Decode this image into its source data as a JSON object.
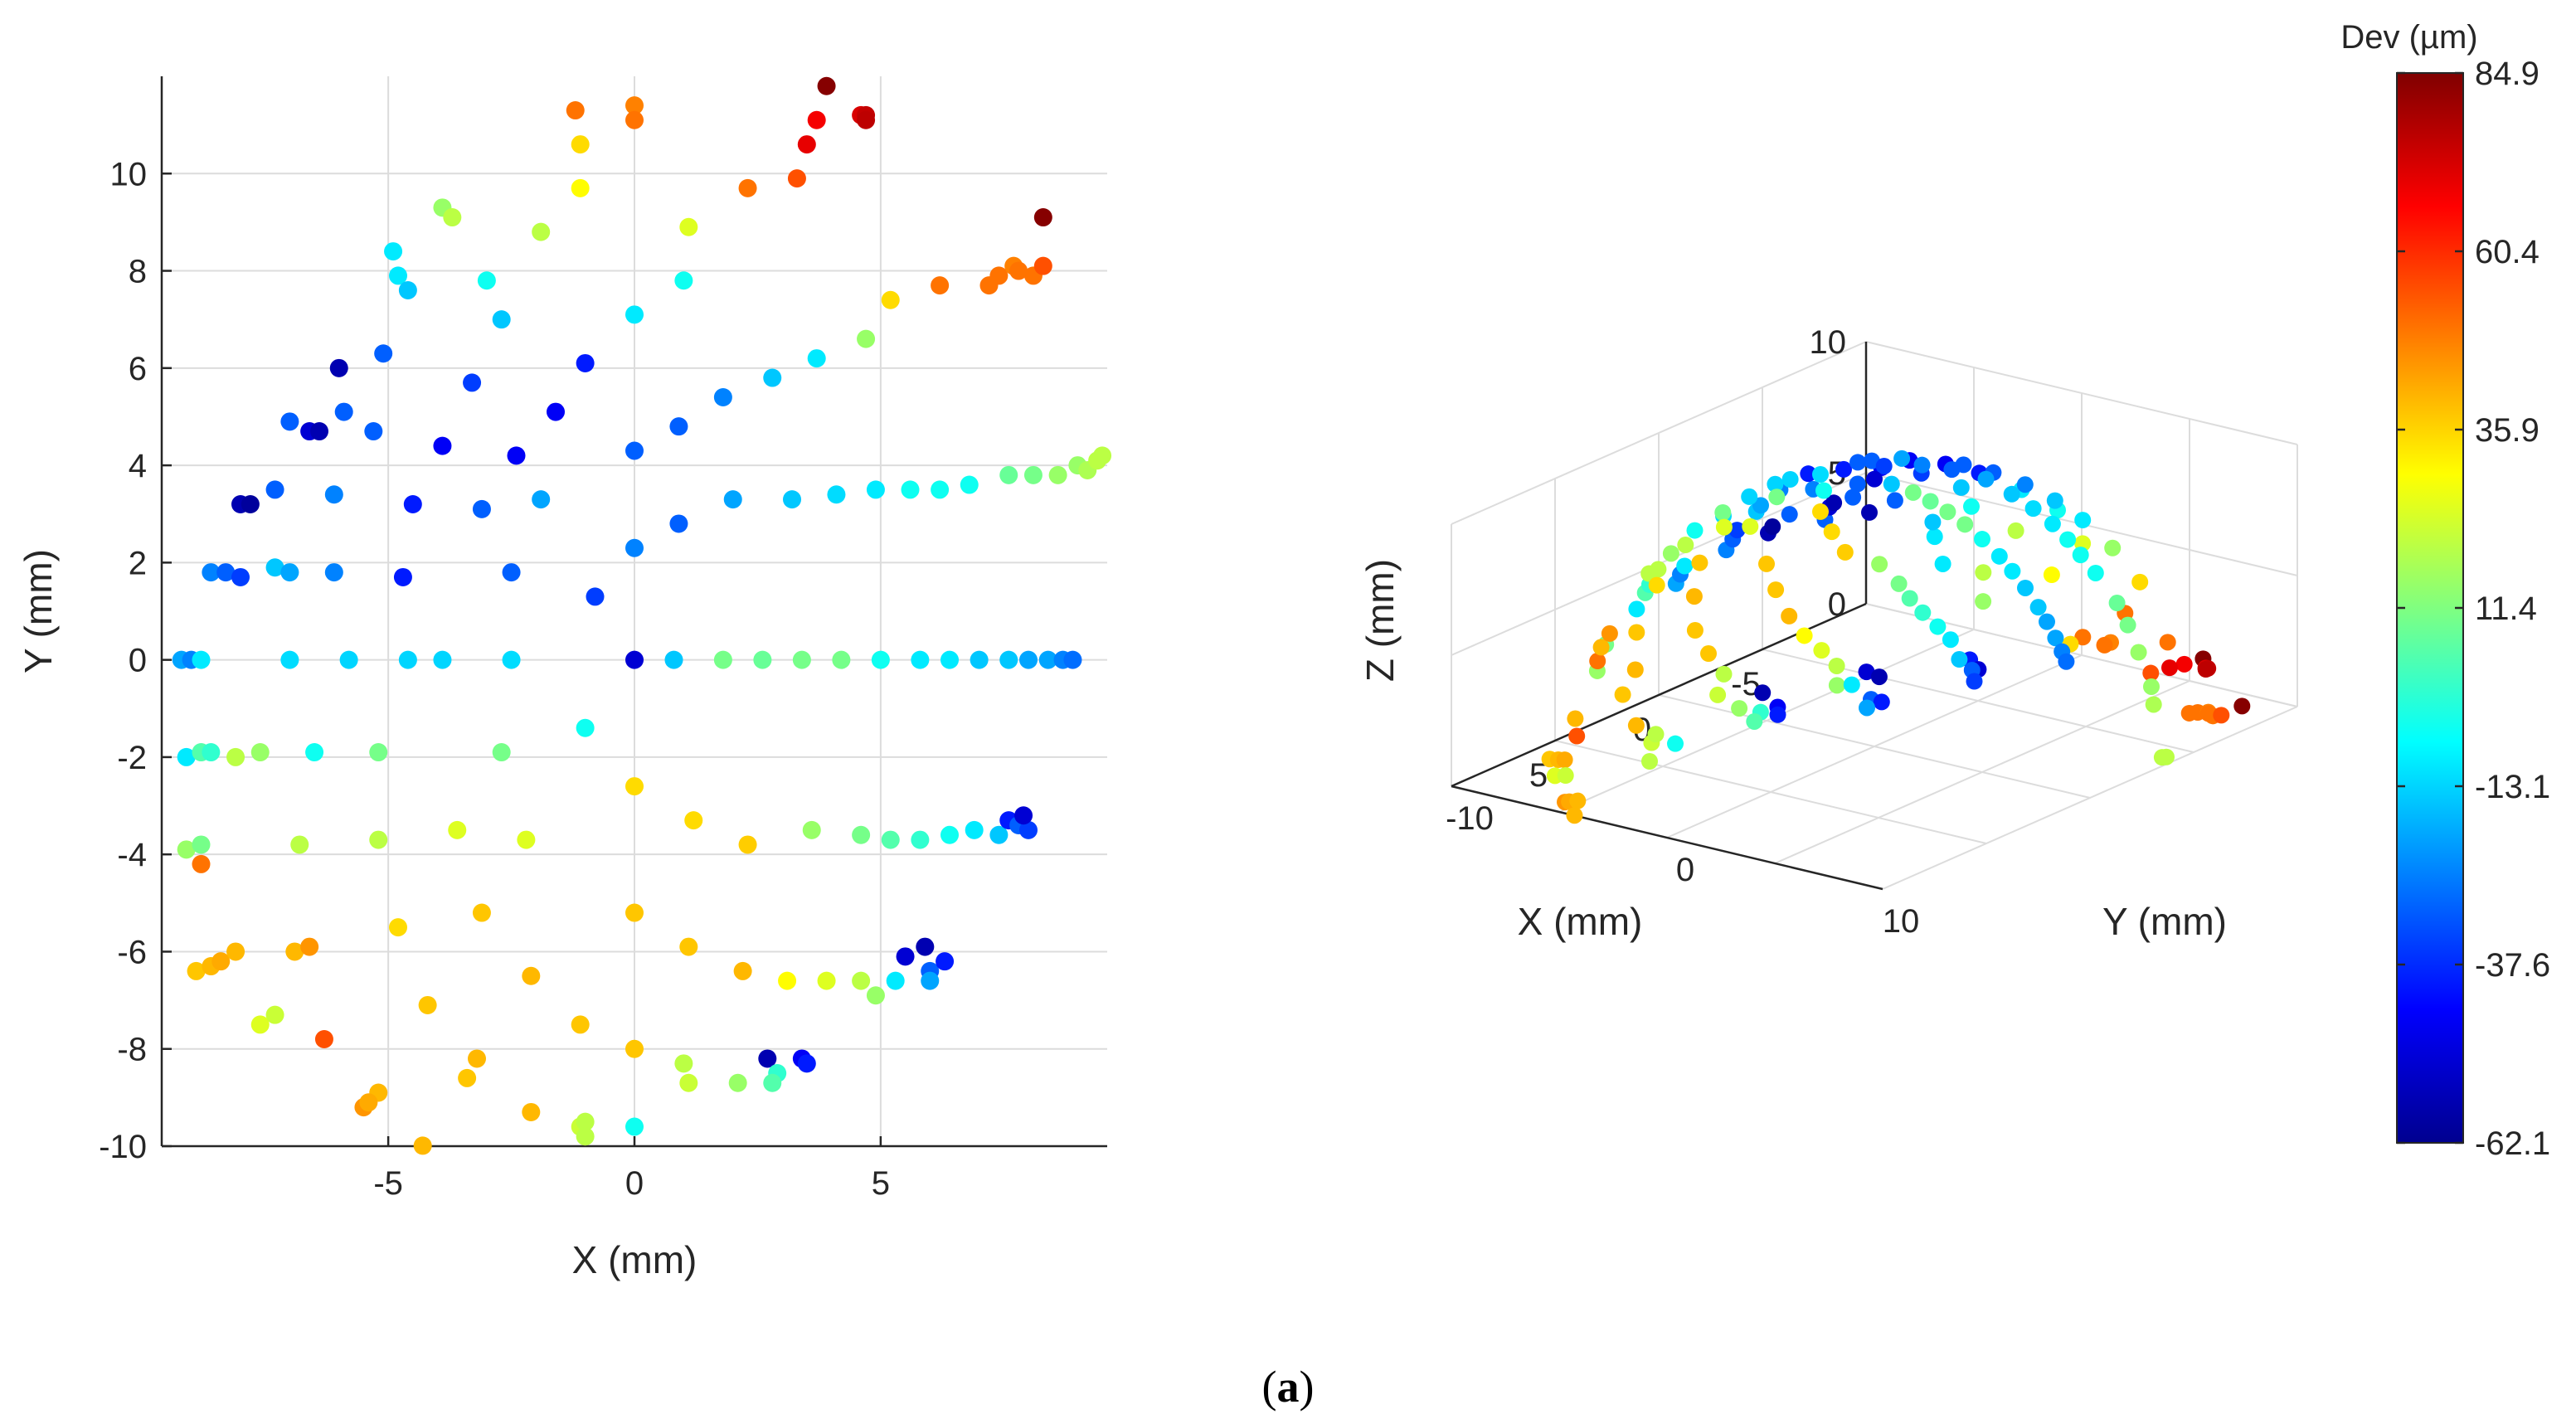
{
  "caption": {
    "open": "(",
    "letter": "a",
    "close": ")"
  },
  "chart_data": [
    {
      "type": "scatter",
      "name": "top-view",
      "xlabel": "X (mm)",
      "ylabel": "Y (mm)",
      "xlim": [
        -9.6,
        9.6
      ],
      "ylim": [
        -10,
        12
      ],
      "xticks": [
        -5,
        0,
        5
      ],
      "xtick_labels": [
        "-5",
        "0",
        "5"
      ],
      "yticks": [
        -10,
        -8,
        -6,
        -4,
        -2,
        0,
        2,
        4,
        6,
        8,
        10
      ],
      "ytick_labels": [
        "-10",
        "-8",
        "-6",
        "-4",
        "-2",
        "0",
        "2",
        "4",
        "6",
        "8",
        "10"
      ],
      "grid": true,
      "color_variable": "Dev (µm)",
      "points": [
        [
          -9.2,
          0,
          -20
        ],
        [
          -9.0,
          0,
          -25
        ],
        [
          -8.8,
          0,
          -10
        ],
        [
          -7.0,
          0,
          -12
        ],
        [
          -5.8,
          0,
          -13
        ],
        [
          -4.6,
          0,
          -13
        ],
        [
          -3.9,
          0,
          -13
        ],
        [
          -2.5,
          0,
          -12
        ],
        [
          0,
          0,
          -50
        ],
        [
          0.8,
          0,
          -15
        ],
        [
          1.8,
          0,
          10
        ],
        [
          2.6,
          0,
          8
        ],
        [
          3.4,
          0,
          10
        ],
        [
          4.2,
          0,
          10
        ],
        [
          5.0,
          0,
          -5
        ],
        [
          5.8,
          0,
          -10
        ],
        [
          6.4,
          0,
          -10
        ],
        [
          7.0,
          0,
          -15
        ],
        [
          7.6,
          0,
          -15
        ],
        [
          8.0,
          0,
          -20
        ],
        [
          8.4,
          0,
          -20
        ],
        [
          8.7,
          0,
          -25
        ],
        [
          8.9,
          0,
          -28
        ],
        [
          -9.1,
          -2.0,
          -10
        ],
        [
          -8.8,
          -1.9,
          5
        ],
        [
          -8.6,
          -1.9,
          0
        ],
        [
          -8.1,
          -2.0,
          20
        ],
        [
          -7.6,
          -1.9,
          15
        ],
        [
          -6.5,
          -1.9,
          -5
        ],
        [
          -5.2,
          -1.9,
          10
        ],
        [
          -2.7,
          -1.9,
          10
        ],
        [
          -1.0,
          -1.4,
          -5
        ],
        [
          -9.1,
          -3.9,
          15
        ],
        [
          -8.8,
          -3.8,
          10
        ],
        [
          -6.8,
          -3.8,
          20
        ],
        [
          -5.2,
          -3.7,
          20
        ],
        [
          -3.6,
          -3.5,
          25
        ],
        [
          -2.2,
          -3.7,
          25
        ],
        [
          0,
          -2.6,
          35
        ],
        [
          1.2,
          -3.3,
          35
        ],
        [
          2.3,
          -3.8,
          37
        ],
        [
          3.6,
          -3.5,
          15
        ],
        [
          4.6,
          -3.6,
          10
        ],
        [
          5.2,
          -3.7,
          5
        ],
        [
          5.8,
          -3.7,
          0
        ],
        [
          6.4,
          -3.6,
          -5
        ],
        [
          6.9,
          -3.5,
          -10
        ],
        [
          7.4,
          -3.6,
          -15
        ],
        [
          7.6,
          -3.3,
          -40
        ],
        [
          7.8,
          -3.4,
          -30
        ],
        [
          8.0,
          -3.5,
          -35
        ],
        [
          7.9,
          -3.2,
          -50
        ],
        [
          -8.8,
          -4.2,
          50
        ],
        [
          -8.9,
          -6.4,
          38
        ],
        [
          -8.6,
          -6.3,
          40
        ],
        [
          -8.4,
          -6.2,
          42
        ],
        [
          -8.1,
          -6.0,
          40
        ],
        [
          -6.9,
          -6.0,
          40
        ],
        [
          -6.6,
          -5.9,
          45
        ],
        [
          -4.8,
          -5.5,
          35
        ],
        [
          -3.1,
          -5.2,
          38
        ],
        [
          0,
          -5.2,
          38
        ],
        [
          1.1,
          -5.9,
          38
        ],
        [
          2.2,
          -6.4,
          40
        ],
        [
          3.1,
          -6.6,
          30
        ],
        [
          3.9,
          -6.6,
          25
        ],
        [
          4.6,
          -6.6,
          20
        ],
        [
          4.9,
          -6.9,
          15
        ],
        [
          5.3,
          -6.6,
          -10
        ],
        [
          5.5,
          -6.1,
          -50
        ],
        [
          5.9,
          -5.9,
          -55
        ],
        [
          6.0,
          -6.4,
          -30
        ],
        [
          6.0,
          -6.6,
          -20
        ],
        [
          6.3,
          -6.2,
          -40
        ],
        [
          -7.6,
          -7.5,
          25
        ],
        [
          -7.3,
          -7.3,
          22
        ],
        [
          -6.3,
          -7.8,
          55
        ],
        [
          -5.2,
          -8.9,
          40
        ],
        [
          -5.5,
          -9.2,
          45
        ],
        [
          -5.4,
          -9.1,
          42
        ],
        [
          -4.3,
          -9.99,
          40
        ],
        [
          -4.2,
          -7.1,
          38
        ],
        [
          -3.2,
          -8.2,
          40
        ],
        [
          -3.4,
          -8.6,
          38
        ],
        [
          -2.1,
          -6.5,
          40
        ],
        [
          -2.1,
          -9.3,
          40
        ],
        [
          -1.1,
          -7.5,
          38
        ],
        [
          -1.1,
          -9.6,
          22
        ],
        [
          -1.0,
          -9.8,
          20
        ],
        [
          -1.0,
          -9.5,
          20
        ],
        [
          0,
          -8.0,
          38
        ],
        [
          0,
          -9.6,
          -5
        ],
        [
          1.0,
          -8.3,
          20
        ],
        [
          1.1,
          -8.7,
          22
        ],
        [
          2.1,
          -8.7,
          15
        ],
        [
          2.7,
          -8.2,
          -55
        ],
        [
          2.9,
          -8.5,
          0
        ],
        [
          2.8,
          -8.7,
          5
        ],
        [
          3.4,
          -8.2,
          -45
        ],
        [
          3.5,
          -8.3,
          -40
        ],
        [
          -8.6,
          1.8,
          -25
        ],
        [
          -8.3,
          1.8,
          -30
        ],
        [
          -8.0,
          1.7,
          -35
        ],
        [
          -7.3,
          1.9,
          -15
        ],
        [
          -7.0,
          1.8,
          -20
        ],
        [
          -6.1,
          1.8,
          -25
        ],
        [
          -4.7,
          1.7,
          -40
        ],
        [
          -2.5,
          1.8,
          -30
        ],
        [
          -0.8,
          1.3,
          -35
        ],
        [
          0,
          2.3,
          -25
        ],
        [
          0.9,
          2.8,
          -30
        ],
        [
          2.0,
          3.3,
          -20
        ],
        [
          3.2,
          3.3,
          -15
        ],
        [
          4.1,
          3.4,
          -12
        ],
        [
          4.9,
          3.5,
          -10
        ],
        [
          5.6,
          3.5,
          -5
        ],
        [
          6.2,
          3.5,
          -5
        ],
        [
          6.8,
          3.6,
          -5
        ],
        [
          7.6,
          3.8,
          8
        ],
        [
          8.1,
          3.8,
          10
        ],
        [
          8.6,
          3.8,
          15
        ],
        [
          9.0,
          4.0,
          15
        ],
        [
          9.2,
          3.9,
          18
        ],
        [
          9.4,
          4.1,
          20
        ],
        [
          9.5,
          4.2,
          20
        ],
        [
          -8.0,
          3.2,
          -55
        ],
        [
          -7.8,
          3.2,
          -58
        ],
        [
          -7.3,
          3.5,
          -30
        ],
        [
          -6.1,
          3.4,
          -25
        ],
        [
          -4.5,
          3.2,
          -40
        ],
        [
          -3.1,
          3.1,
          -30
        ],
        [
          -1.9,
          3.3,
          -20
        ],
        [
          -7.0,
          4.9,
          -30
        ],
        [
          -6.6,
          4.7,
          -50
        ],
        [
          -6.4,
          4.7,
          -55
        ],
        [
          -5.3,
          4.7,
          -30
        ],
        [
          -5.9,
          5.1,
          -30
        ],
        [
          -3.9,
          4.4,
          -45
        ],
        [
          -2.4,
          4.2,
          -45
        ],
        [
          -1.6,
          5.1,
          -45
        ],
        [
          0,
          4.3,
          -30
        ],
        [
          0.9,
          4.8,
          -30
        ],
        [
          1.8,
          5.4,
          -25
        ],
        [
          2.8,
          5.8,
          -15
        ],
        [
          3.7,
          6.2,
          -10
        ],
        [
          4.7,
          6.6,
          15
        ],
        [
          5.2,
          7.4,
          35
        ],
        [
          6.2,
          7.7,
          50
        ],
        [
          7.2,
          7.7,
          50
        ],
        [
          7.4,
          7.9,
          50
        ],
        [
          7.7,
          8.1,
          48
        ],
        [
          7.8,
          8.0,
          50
        ],
        [
          8.1,
          7.9,
          50
        ],
        [
          8.3,
          8.1,
          55
        ],
        [
          -6.0,
          6.0,
          -55
        ],
        [
          -5.1,
          6.3,
          -30
        ],
        [
          -3.3,
          5.7,
          -35
        ],
        [
          -2.7,
          7.0,
          -15
        ],
        [
          -1.0,
          6.1,
          -40
        ],
        [
          0,
          7.1,
          -10
        ],
        [
          1.0,
          7.8,
          -5
        ],
        [
          -3.0,
          7.8,
          -5
        ],
        [
          -4.8,
          7.9,
          -10
        ],
        [
          -4.6,
          7.6,
          -15
        ],
        [
          -4.9,
          8.4,
          -10
        ],
        [
          -3.9,
          9.3,
          15
        ],
        [
          -3.7,
          9.1,
          20
        ],
        [
          -1.9,
          8.8,
          20
        ],
        [
          1.1,
          8.9,
          25
        ],
        [
          -1.1,
          10.6,
          35
        ],
        [
          -1.1,
          9.7,
          30
        ],
        [
          -1.2,
          11.3,
          50
        ],
        [
          0,
          11.4,
          48
        ],
        [
          0,
          11.1,
          50
        ],
        [
          2.3,
          9.7,
          50
        ],
        [
          3.3,
          9.9,
          55
        ],
        [
          3.5,
          10.6,
          70
        ],
        [
          3.7,
          11.1,
          68
        ],
        [
          3.9,
          11.8,
          84
        ],
        [
          4.6,
          11.2,
          72
        ],
        [
          4.7,
          11.2,
          75
        ],
        [
          4.7,
          11.1,
          76
        ],
        [
          8.3,
          9.1,
          84
        ]
      ]
    },
    {
      "type": "scatter3d",
      "name": "3d-view",
      "xlabel": "X (mm)",
      "ylabel": "Y (mm)",
      "zlabel": "Z (mm)",
      "xticks": [
        -5,
        0,
        5
      ],
      "xtick_labels": [
        "-5",
        "0",
        "5"
      ],
      "yticks": [
        -10,
        0,
        10
      ],
      "ytick_labels": [
        "-10",
        "0",
        "10"
      ],
      "zticks": [
        0,
        5,
        10
      ],
      "ztick_labels": [
        "0",
        "5",
        "10"
      ],
      "grid": true,
      "view": "azimuth ~ -130, elevation ~ 25",
      "description_points": "same measurement points as top-view plotted on hemispherical surface"
    }
  ],
  "colorbar": {
    "title": "Dev (µm)",
    "min": -62.1,
    "max": 84.9,
    "colormap": "jet",
    "ticks": [
      84.9,
      60.4,
      35.9,
      11.4,
      -13.1,
      -37.6,
      -62.1
    ],
    "tick_labels": [
      "84.9",
      "60.4",
      "35.9",
      "11.4",
      "-13.1",
      "-37.6",
      "-62.1"
    ]
  }
}
